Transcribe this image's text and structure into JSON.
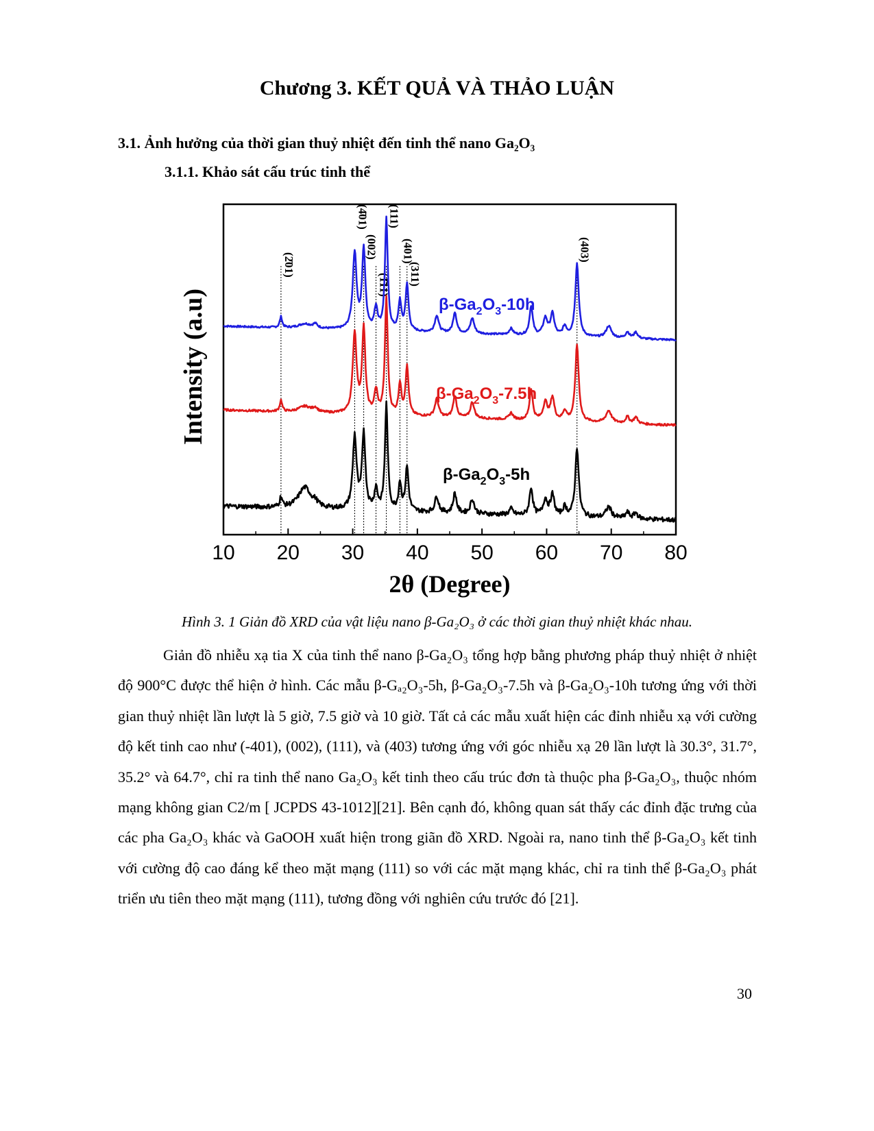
{
  "page": {
    "chapter_title": "Chương 3. KẾT QUẢ VÀ THẢO LUẬN",
    "section_heading": "3.1. Ảnh hưởng của thời gian thuỷ nhiệt đến tinh thể nano Ga₂O₃",
    "subsection_heading": "3.1.1. Khảo sát cấu trúc tinh thể",
    "figure_caption": "Hình 3. 1 Giản đồ XRD của vật liệu nano β-Ga₂O₃ ở các thời gian thuỷ nhiệt khác nhau.",
    "paragraph": "Giản đồ nhiễu xạ tia X của tinh thể nano β-Ga₂O₃ tổng hợp bằng phương pháp thuỷ nhiệt ở nhiệt độ 900°C được thể hiện ở hình. Các mẫu β-Gₐ₂O₃-5h, β-Ga₂O₃-7.5h và β-Ga₂O₃-10h tương ứng với thời gian thuỷ nhiệt lần lượt là 5 giờ, 7.5 giờ và 10 giờ. Tất cả các mẫu xuất hiện các đỉnh nhiễu xạ với cường độ kết tinh cao như (-401), (002), (111), và (403) tương ứng với góc nhiễu xạ 2θ lần lượt là 30.3°, 31.7°, 35.2° và 64.7°, chỉ ra tinh thể nano Ga₂O₃ kết tinh theo cấu trúc đơn tà thuộc pha β-Ga₂O₃, thuộc nhóm mạng không gian C2/m [ JCPDS 43-1012][21]. Bên cạnh đó, không quan sát thấy các đỉnh đặc trưng của các pha Ga₂O₃ khác và GaOOH xuất hiện trong giãn đồ XRD. Ngoài ra, nano tinh thể β-Ga₂O₃ kết tinh với cường độ cao đáng kể theo mặt mạng (111) so với các mặt mạng khác, chỉ ra tinh thể β-Ga₂O₃ phát triển ưu tiên theo mặt mạng (111), tương đồng với nghiên cứu trước đó [21].",
    "page_number": "30"
  },
  "chart_data": {
    "type": "line",
    "xlabel": "2θ (Degree)",
    "ylabel": "Intensity (a.u)",
    "xlim": [
      10,
      80
    ],
    "xticks": [
      "10",
      "20",
      "30",
      "40",
      "50",
      "60",
      "70",
      "80"
    ],
    "reference_lines": [
      {
        "x": 18.9,
        "label": "(2̄01)"
      },
      {
        "x": 30.3,
        "label": "(4̄01)"
      },
      {
        "x": 31.7,
        "label": "(002)"
      },
      {
        "x": 33.6,
        "label": "(1̄11)"
      },
      {
        "x": 35.2,
        "label": "(111)"
      },
      {
        "x": 37.3,
        "label": "(401)"
      },
      {
        "x": 38.4,
        "label": "(311)"
      },
      {
        "x": 64.7,
        "label": "(403)"
      }
    ],
    "peaks": [
      [
        18.9,
        0.14,
        0.22
      ],
      [
        22.6,
        0.0,
        1.2
      ],
      [
        24.2,
        0.05,
        0.4
      ],
      [
        30.3,
        1.0,
        0.35
      ],
      [
        31.7,
        1.05,
        0.3
      ],
      [
        33.6,
        0.28,
        0.3
      ],
      [
        35.2,
        1.45,
        0.26
      ],
      [
        37.3,
        0.38,
        0.26
      ],
      [
        38.4,
        0.6,
        0.28
      ],
      [
        43.0,
        0.22,
        0.35
      ],
      [
        45.8,
        0.27,
        0.32
      ],
      [
        48.5,
        0.2,
        0.35
      ],
      [
        54.5,
        0.08,
        0.35
      ],
      [
        57.6,
        0.38,
        0.3
      ],
      [
        59.8,
        0.22,
        0.4
      ],
      [
        60.9,
        0.28,
        0.35
      ],
      [
        62.8,
        0.12,
        0.35
      ],
      [
        64.7,
        0.95,
        0.32
      ],
      [
        69.6,
        0.15,
        0.5
      ],
      [
        72.5,
        0.08,
        0.35
      ],
      [
        73.8,
        0.08,
        0.35
      ]
    ],
    "series": [
      {
        "name": "β-Ga₂O₃-10h",
        "label_main": "β-Ga",
        "label_sub1": "2",
        "label_mid": "O",
        "label_sub2": "3",
        "label_tail": "-10h",
        "color": "#1f1fe0",
        "baseline_start": 0.68,
        "baseline_end": 0.5,
        "broad_hump": 0.12,
        "intensity_scale": 1.0,
        "noise": 0.012
      },
      {
        "name": "β-Ga₂O₃-7.5h",
        "label_main": "β-Ga",
        "label_sub1": "2",
        "label_mid": "O",
        "label_sub2": "3",
        "label_tail": "-7.5h",
        "color": "#e01a1a",
        "baseline_start": 0.66,
        "baseline_end": 0.46,
        "broad_hump": 0.16,
        "intensity_scale": 1.05,
        "noise": 0.014
      },
      {
        "name": "β-Ga₂O₃-5h",
        "label_main": "β-Ga",
        "label_sub1": "2",
        "label_mid": "O",
        "label_sub2": "3",
        "label_tail": "-5h",
        "color": "#000000",
        "baseline_start": 0.62,
        "baseline_end": 0.44,
        "broad_hump": 0.55,
        "intensity_scale": 0.95,
        "noise": 0.03
      }
    ]
  }
}
